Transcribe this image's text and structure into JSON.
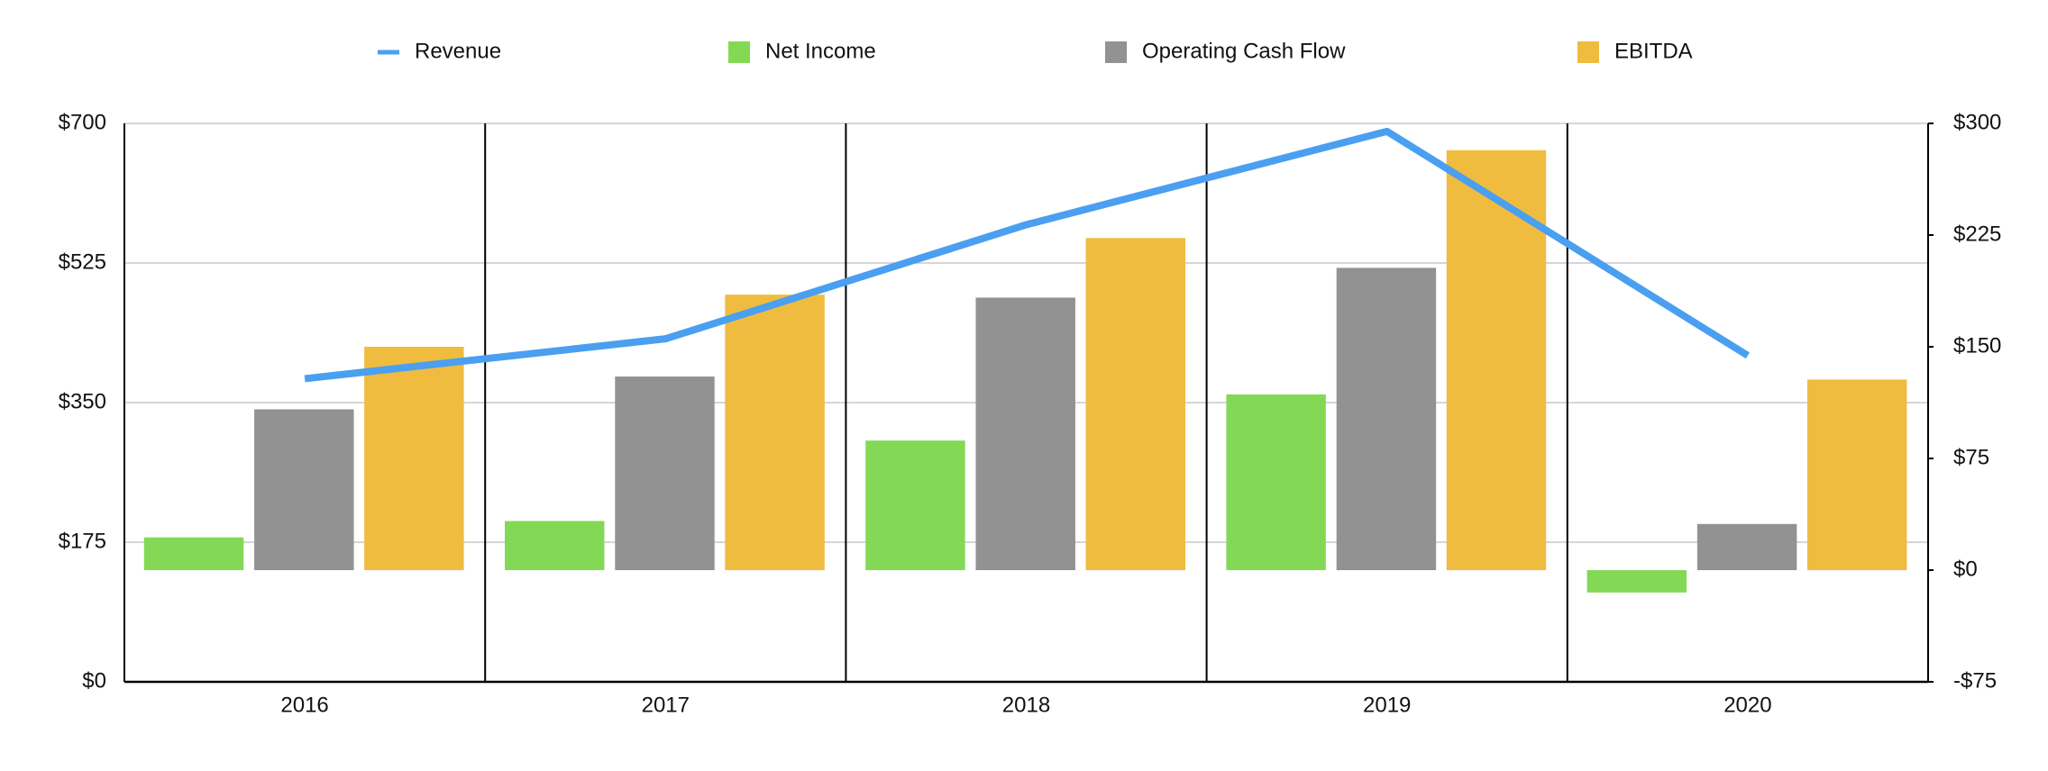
{
  "chart_data": {
    "type": "bar",
    "categories": [
      "2016",
      "2017",
      "2018",
      "2019",
      "2020"
    ],
    "series": [
      {
        "name": "Revenue",
        "type": "line",
        "color": "#4a9ff0",
        "axis": "y",
        "values": [
          380,
          430,
          573,
          690,
          409
        ]
      },
      {
        "name": "Net Income",
        "type": "bar",
        "color": "#83d955",
        "axis": "y2",
        "values": [
          22,
          33,
          87,
          118,
          -15
        ]
      },
      {
        "name": "Operating Cash Flow",
        "type": "bar",
        "color": "#929292",
        "axis": "y2",
        "values": [
          108,
          130,
          183,
          203,
          31
        ]
      },
      {
        "name": "EBITDA",
        "type": "bar",
        "color": "#efbc40",
        "axis": "y2",
        "values": [
          150,
          185,
          223,
          282,
          128
        ]
      }
    ],
    "ylim": [
      0,
      700
    ],
    "yticks": [
      {
        "value": 0,
        "label": "$0"
      },
      {
        "value": 175,
        "label": "$175"
      },
      {
        "value": 350,
        "label": "$350"
      },
      {
        "value": 525,
        "label": "$525"
      },
      {
        "value": 700,
        "label": "$700"
      }
    ],
    "y2lim": [
      -75,
      300
    ],
    "y2ticks": [
      {
        "value": -75,
        "label": "-$75"
      },
      {
        "value": 0,
        "label": "$0"
      },
      {
        "value": 75,
        "label": "$75"
      },
      {
        "value": 150,
        "label": "$150"
      },
      {
        "value": 225,
        "label": "$225"
      },
      {
        "value": 300,
        "label": "$300"
      }
    ],
    "grid": true
  }
}
